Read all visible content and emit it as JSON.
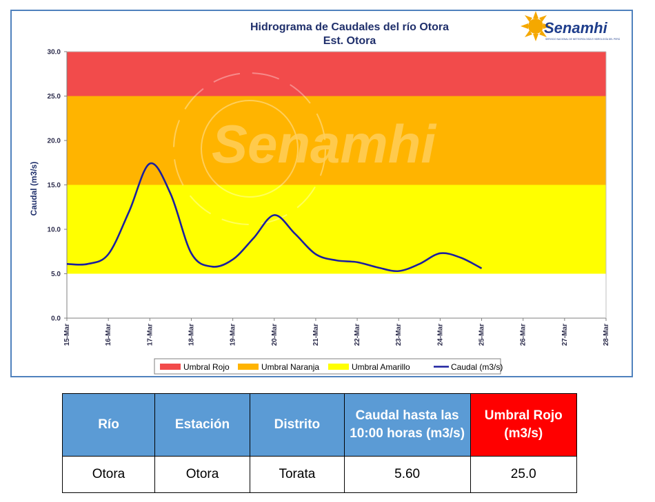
{
  "chart_data": {
    "type": "line",
    "title": "Hidrograma de Caudales del río Otora",
    "subtitle": "Est. Otora",
    "xlabel": "",
    "ylabel": "Caudal (m3/s)",
    "ylim": [
      0,
      30
    ],
    "y_ticks": [
      "0.0",
      "5.0",
      "10.0",
      "15.0",
      "20.0",
      "25.0",
      "30.0"
    ],
    "x_ticks": [
      "15-Mar",
      "16-Mar",
      "17-Mar",
      "18-Mar",
      "19-Mar",
      "20-Mar",
      "21-Mar",
      "22-Mar",
      "23-Mar",
      "24-Mar",
      "25-Mar",
      "26-Mar",
      "27-Mar",
      "28-Mar"
    ],
    "x_range": [
      "15-Mar",
      "28-Mar"
    ],
    "grid": false,
    "legend_position": "bottom",
    "bands": [
      {
        "name": "Umbral Rojo",
        "from": 25,
        "to": 30,
        "color": "#f24b4b"
      },
      {
        "name": "Umbral Naranja",
        "from": 15,
        "to": 25,
        "color": "#ffb400"
      },
      {
        "name": "Umbral Amarillo",
        "from": 5,
        "to": 15,
        "color": "#ffff00"
      }
    ],
    "series": [
      {
        "name": "Caudal (m3/s)",
        "color": "#1b1f9e",
        "x": [
          "15-Mar",
          "15-Mar 12h",
          "16-Mar",
          "16-Mar 12h",
          "17-Mar",
          "17-Mar 12h",
          "18-Mar",
          "18-Mar 12h",
          "19-Mar",
          "19-Mar 12h",
          "20-Mar",
          "20-Mar 12h",
          "21-Mar",
          "21-Mar 12h",
          "22-Mar",
          "22-Mar 12h",
          "23-Mar",
          "23-Mar 12h",
          "24-Mar",
          "24-Mar 12h",
          "25-Mar"
        ],
        "values": [
          6.1,
          6.1,
          7.2,
          12.0,
          17.4,
          14.0,
          7.3,
          5.8,
          6.6,
          9.0,
          11.6,
          9.5,
          7.2,
          6.5,
          6.3,
          5.7,
          5.3,
          6.1,
          7.3,
          6.8,
          5.6
        ]
      }
    ]
  },
  "legend": [
    {
      "label": "Umbral Rojo",
      "color": "#f24b4b",
      "kind": "box"
    },
    {
      "label": "Umbral Naranja",
      "color": "#ffb400",
      "kind": "box"
    },
    {
      "label": "Umbral Amarillo",
      "color": "#ffff00",
      "kind": "box"
    },
    {
      "label": "Caudal (m3/s)",
      "color": "#1b1f9e",
      "kind": "line"
    }
  ],
  "logo": {
    "text": "Senamhi",
    "tagline": "SERVICIO NACIONAL DE METEOROLOGÍA E HIDROLOGÍA DEL PERÚ",
    "color": "#1f3e8c",
    "sun_color": "#f5a800"
  },
  "watermark": {
    "text": "Senamhi"
  },
  "table": {
    "headers": [
      {
        "label": "Río",
        "bg": "#5b9bd5"
      },
      {
        "label": "Estación",
        "bg": "#5b9bd5"
      },
      {
        "label": "Distrito",
        "bg": "#5b9bd5"
      },
      {
        "label": "Caudal hasta las 10:00 horas (m3/s)",
        "bg": "#5b9bd5"
      },
      {
        "label": "Umbral Rojo (m3/s)",
        "bg": "#ff0000"
      }
    ],
    "rows": [
      [
        "Otora",
        "Otora",
        "Torata",
        "5.60",
        "25.0"
      ]
    ]
  }
}
